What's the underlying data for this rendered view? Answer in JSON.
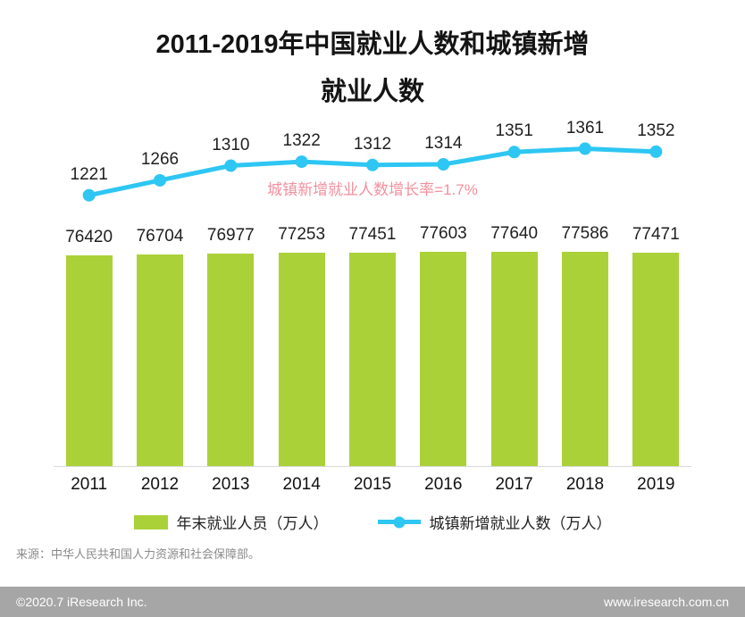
{
  "title": {
    "line1": "2011-2019年中国就业人数和城镇新增",
    "line2": "就业人数"
  },
  "annotation": "城镇新增就业人数增长率=1.7%",
  "legend": {
    "bar": "年末就业人员（万人）",
    "line": "城镇新增就业人数（万人）"
  },
  "source": "来源：中华人民共和国人力资源和社会保障部。",
  "footer": {
    "left": "©2020.7 iResearch Inc.",
    "right": "www.iresearch.com.cn"
  },
  "colors": {
    "bar": "#abd139",
    "line": "#2ec6f3",
    "annotation": "#f2909c",
    "footer_bg": "#a6a6a6",
    "axis_line": "#d9d9d9"
  },
  "chart_data": {
    "type": "combo",
    "title": "2011-2019年中国就业人数和城镇新增就业人数",
    "categories": [
      "2011",
      "2012",
      "2013",
      "2014",
      "2015",
      "2016",
      "2017",
      "2018",
      "2019"
    ],
    "series": [
      {
        "name": "年末就业人员（万人）",
        "type": "bar",
        "values": [
          76420,
          76704,
          76977,
          77253,
          77451,
          77603,
          77640,
          77586,
          77471
        ]
      },
      {
        "name": "城镇新增就业人数（万人）",
        "type": "line",
        "values": [
          1221,
          1266,
          1310,
          1322,
          1312,
          1314,
          1351,
          1361,
          1352
        ]
      }
    ],
    "annotations": [
      "城镇新增就业人数增长率=1.7%"
    ],
    "legend_position": "bottom",
    "grid": false,
    "bar_axis_implied_max": 77640,
    "line_axis_implied_range": [
      1180,
      1400
    ]
  }
}
